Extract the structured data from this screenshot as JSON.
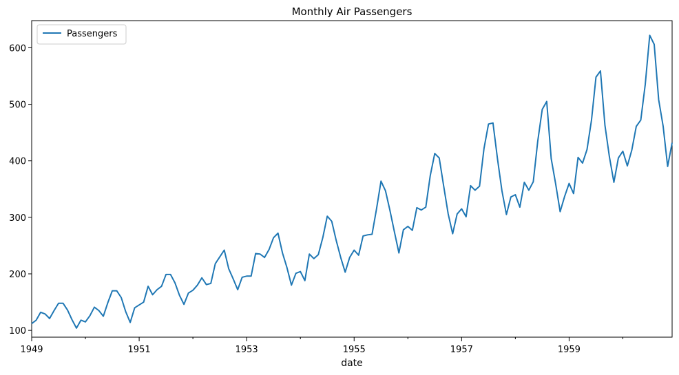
{
  "chart_data": {
    "type": "line",
    "title": "Monthly Air Passengers",
    "xlabel": "date",
    "ylabel": "",
    "x_start": "1949-01",
    "x_frequency": "monthly",
    "xlim": [
      "1949-01",
      "1960-12"
    ],
    "ylim": [
      88,
      648
    ],
    "x_tick_labels": [
      "1949",
      "1951",
      "1953",
      "1955",
      "1957",
      "1959"
    ],
    "x_tick_years": [
      1949,
      1951,
      1953,
      1955,
      1957,
      1959
    ],
    "x_minor_tick_years": [
      1950,
      1952,
      1954,
      1956,
      1958,
      1960
    ],
    "y_ticks": [
      100,
      200,
      300,
      400,
      500,
      600
    ],
    "y_tick_labels": [
      "100",
      "200",
      "300",
      "400",
      "500",
      "600"
    ],
    "grid": false,
    "legend_position": "top-left",
    "series": [
      {
        "name": "Passengers",
        "color": "#1f77b4",
        "values": [
          112,
          118,
          132,
          129,
          121,
          135,
          148,
          148,
          136,
          119,
          104,
          118,
          115,
          126,
          141,
          135,
          125,
          149,
          170,
          170,
          158,
          133,
          114,
          140,
          145,
          150,
          178,
          163,
          172,
          178,
          199,
          199,
          184,
          162,
          146,
          166,
          171,
          180,
          193,
          181,
          183,
          218,
          230,
          242,
          209,
          191,
          172,
          194,
          196,
          196,
          236,
          235,
          229,
          243,
          264,
          272,
          237,
          211,
          180,
          201,
          204,
          188,
          235,
          227,
          234,
          264,
          302,
          293,
          259,
          229,
          203,
          229,
          242,
          233,
          267,
          269,
          270,
          315,
          364,
          347,
          312,
          274,
          237,
          278,
          284,
          277,
          317,
          313,
          318,
          374,
          413,
          405,
          355,
          306,
          271,
          306,
          315,
          301,
          356,
          348,
          355,
          422,
          465,
          467,
          404,
          347,
          305,
          336,
          340,
          318,
          362,
          348,
          363,
          435,
          491,
          505,
          404,
          359,
          310,
          337,
          360,
          342,
          406,
          396,
          420,
          472,
          548,
          559,
          463,
          407,
          362,
          405,
          417,
          391,
          419,
          461,
          472,
          535,
          622,
          606,
          508,
          461,
          390,
          432
        ]
      }
    ]
  }
}
